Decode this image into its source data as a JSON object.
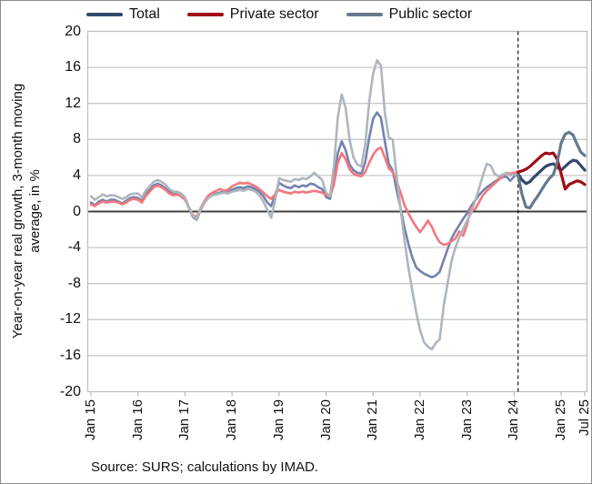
{
  "figure": {
    "source_note": "Source: SURS; calculations by IMAD."
  },
  "chart_data": {
    "type": "line",
    "y_axis_title": "Year-on-year real growth, 3-month moving average, in %",
    "ylim": [
      -20,
      20
    ],
    "yticks": [
      20,
      16,
      12,
      8,
      4,
      0,
      -4,
      -8,
      -12,
      -16,
      -20
    ],
    "x_start_month": "2015-01",
    "x_end_month": "2025-07",
    "n_months": 127,
    "xticks": [
      {
        "month": 0,
        "label": "Jan 15"
      },
      {
        "month": 12,
        "label": "Jan 16"
      },
      {
        "month": 24,
        "label": "Jan 17"
      },
      {
        "month": 36,
        "label": "Jan 18"
      },
      {
        "month": 48,
        "label": "Jan 19"
      },
      {
        "month": 60,
        "label": "Jan 20"
      },
      {
        "month": 72,
        "label": "Jan 21"
      },
      {
        "month": 84,
        "label": "Jan 22"
      },
      {
        "month": 96,
        "label": "Jan 23"
      },
      {
        "month": 108,
        "label": "Jan 24"
      },
      {
        "month": 120,
        "label": "Jan 25"
      },
      {
        "month": 126,
        "label": "Jul 25"
      }
    ],
    "dashed_vline_month_index": 109,
    "highlight_from_index": 109,
    "grid_color": "#c9c9c9",
    "border_color": "#bfbfbf",
    "zero_line_color": "#404040",
    "dashed_line_color": "#000000",
    "legend_position": "top",
    "series": [
      {
        "name": "Total",
        "color_dark": "#33496b",
        "color_light": "#7482ae",
        "values": [
          1.0,
          0.7,
          1.1,
          1.3,
          1.1,
          1.3,
          1.3,
          1.1,
          0.9,
          1.2,
          1.5,
          1.6,
          1.5,
          1.2,
          1.9,
          2.4,
          2.9,
          3.1,
          2.9,
          2.6,
          2.2,
          1.9,
          2.0,
          1.8,
          1.4,
          0.4,
          -0.6,
          -0.9,
          0.2,
          1.0,
          1.6,
          1.9,
          2.0,
          2.1,
          2.3,
          2.2,
          2.4,
          2.6,
          2.7,
          2.6,
          2.8,
          2.7,
          2.5,
          2.2,
          1.7,
          1.0,
          0.6,
          1.8,
          3.2,
          2.9,
          2.7,
          2.6,
          2.9,
          2.7,
          2.9,
          2.8,
          3.1,
          3.0,
          2.7,
          2.5,
          1.6,
          1.4,
          3.5,
          6.5,
          7.8,
          6.8,
          5.2,
          4.6,
          4.3,
          4.2,
          5.5,
          8.2,
          10.3,
          11.0,
          10.4,
          7.8,
          5.3,
          4.6,
          2.4,
          0.4,
          -1.8,
          -3.6,
          -5.1,
          -6.2,
          -6.6,
          -6.9,
          -7.1,
          -7.3,
          -7.1,
          -6.7,
          -5.4,
          -4.2,
          -3.0,
          -2.2,
          -1.5,
          -0.8,
          -0.2,
          0.6,
          1.2,
          1.8,
          2.3,
          2.7,
          3.0,
          3.3,
          3.6,
          3.8,
          3.9,
          3.4,
          3.9,
          4.2,
          3.5,
          3.1,
          3.3,
          3.8,
          4.2,
          4.6,
          5.0,
          5.2,
          5.3,
          4.9,
          4.6,
          5.0,
          5.4,
          5.7,
          5.6,
          5.1,
          4.6
        ]
      },
      {
        "name": "Private sector",
        "color_dark": "#a00e13",
        "color_light": "#f4777d",
        "values": [
          0.8,
          0.6,
          0.9,
          1.1,
          1.0,
          1.1,
          1.1,
          1.0,
          0.8,
          1.0,
          1.3,
          1.4,
          1.3,
          1.0,
          1.7,
          2.2,
          2.7,
          2.9,
          2.7,
          2.4,
          2.0,
          1.8,
          1.9,
          1.7,
          1.3,
          0.5,
          -0.4,
          -0.6,
          0.4,
          1.2,
          1.8,
          2.1,
          2.3,
          2.5,
          2.3,
          2.4,
          2.8,
          3.0,
          3.2,
          3.1,
          3.2,
          3.0,
          2.8,
          2.5,
          2.1,
          1.7,
          1.4,
          1.9,
          2.4,
          2.2,
          2.1,
          2.0,
          2.2,
          2.1,
          2.2,
          2.1,
          2.2,
          2.3,
          2.2,
          2.1,
          1.8,
          1.7,
          3.0,
          5.4,
          6.5,
          5.8,
          4.7,
          4.2,
          4.0,
          3.9,
          4.4,
          5.4,
          6.3,
          6.9,
          7.1,
          6.0,
          4.8,
          4.4,
          3.4,
          2.1,
          0.7,
          -0.2,
          -1.0,
          -1.7,
          -2.3,
          -1.7,
          -1.0,
          -1.7,
          -2.7,
          -3.4,
          -3.7,
          -3.6,
          -3.3,
          -3.0,
          -2.2,
          -2.7,
          -1.4,
          0.4,
          0.2,
          1.0,
          1.8,
          2.3,
          2.7,
          3.1,
          3.5,
          3.9,
          4.3,
          4.2,
          4.3,
          4.4,
          4.5,
          4.7,
          5.0,
          5.4,
          5.8,
          6.2,
          6.5,
          6.4,
          6.5,
          5.8,
          4.2,
          2.5,
          3.0,
          3.2,
          3.4,
          3.3,
          3.0
        ]
      },
      {
        "name": "Public sector",
        "color_dark": "#64798d",
        "color_light": "#aeb6bd",
        "values": [
          1.7,
          1.3,
          1.6,
          1.9,
          1.7,
          1.8,
          1.8,
          1.6,
          1.4,
          1.6,
          1.9,
          2.0,
          2.0,
          1.6,
          2.3,
          2.8,
          3.3,
          3.5,
          3.3,
          3.0,
          2.5,
          2.2,
          2.2,
          2.0,
          1.6,
          0.5,
          -0.5,
          -0.8,
          0.3,
          1.0,
          1.5,
          1.8,
          1.9,
          2.0,
          2.1,
          2.0,
          2.2,
          2.3,
          2.4,
          2.3,
          2.5,
          2.4,
          2.2,
          1.8,
          1.1,
          0.2,
          -0.7,
          1.2,
          3.7,
          3.5,
          3.4,
          3.3,
          3.6,
          3.5,
          3.7,
          3.6,
          3.9,
          4.3,
          3.9,
          3.5,
          2.1,
          1.7,
          5.0,
          10.5,
          13.0,
          11.5,
          8.0,
          6.0,
          5.2,
          5.0,
          7.5,
          12.2,
          15.3,
          16.8,
          16.2,
          11.0,
          8.2,
          8.0,
          4.0,
          0.3,
          -3.2,
          -6.2,
          -8.8,
          -11.2,
          -13.2,
          -14.5,
          -15.0,
          -15.3,
          -14.6,
          -14.2,
          -10.5,
          -8.0,
          -5.5,
          -4.0,
          -2.9,
          -1.9,
          -1.0,
          -0.2,
          1.1,
          2.5,
          4.0,
          5.3,
          5.1,
          4.2,
          3.9,
          4.1,
          4.3,
          4.0,
          4.1,
          4.0,
          1.9,
          0.5,
          0.4,
          1.1,
          1.7,
          2.4,
          3.1,
          3.7,
          4.1,
          5.5,
          7.6,
          8.6,
          8.8,
          8.5,
          7.5,
          6.6,
          6.2
        ]
      }
    ]
  }
}
